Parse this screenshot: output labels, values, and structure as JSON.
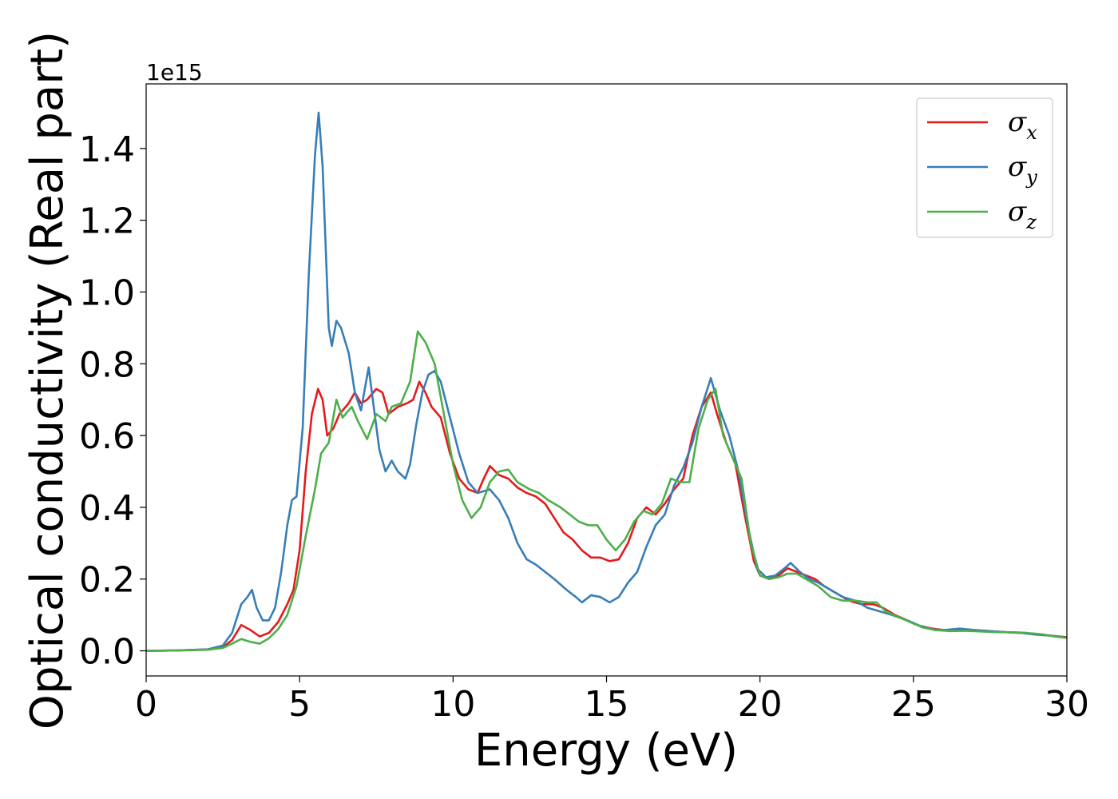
{
  "chart_data": {
    "type": "line",
    "title": "",
    "xlabel": "Energy (eV)",
    "ylabel": "Optical conductivity (Real part)",
    "y_offset_text": "1e15",
    "xlim": [
      0,
      30
    ],
    "ylim": [
      -0.07,
      1.58
    ],
    "x_ticks": [
      0,
      5,
      10,
      15,
      20,
      25,
      30
    ],
    "y_ticks": [
      0.0,
      0.2,
      0.4,
      0.6,
      0.8,
      1.0,
      1.2,
      1.4
    ],
    "y_tick_labels": [
      "0.0",
      "0.2",
      "0.4",
      "0.6",
      "0.8",
      "1.0",
      "1.2",
      "1.4"
    ],
    "grid": false,
    "legend_position": "top-right",
    "series": [
      {
        "name": "σx",
        "legend_base": "σ",
        "legend_sub": "x",
        "color": "#e41a1c",
        "points": [
          [
            0,
            0
          ],
          [
            1,
            0.001
          ],
          [
            2,
            0.004
          ],
          [
            2.5,
            0.01
          ],
          [
            2.8,
            0.03
          ],
          [
            3.1,
            0.072
          ],
          [
            3.4,
            0.058
          ],
          [
            3.7,
            0.04
          ],
          [
            4.0,
            0.05
          ],
          [
            4.3,
            0.08
          ],
          [
            4.6,
            0.13
          ],
          [
            4.8,
            0.17
          ],
          [
            5.0,
            0.28
          ],
          [
            5.2,
            0.5
          ],
          [
            5.4,
            0.66
          ],
          [
            5.6,
            0.73
          ],
          [
            5.75,
            0.7
          ],
          [
            5.9,
            0.6
          ],
          [
            6.1,
            0.62
          ],
          [
            6.3,
            0.66
          ],
          [
            6.6,
            0.69
          ],
          [
            6.8,
            0.72
          ],
          [
            7.0,
            0.69
          ],
          [
            7.2,
            0.7
          ],
          [
            7.5,
            0.73
          ],
          [
            7.7,
            0.72
          ],
          [
            7.9,
            0.66
          ],
          [
            8.2,
            0.68
          ],
          [
            8.5,
            0.69
          ],
          [
            8.7,
            0.7
          ],
          [
            8.9,
            0.75
          ],
          [
            9.1,
            0.72
          ],
          [
            9.3,
            0.68
          ],
          [
            9.6,
            0.65
          ],
          [
            9.9,
            0.55
          ],
          [
            10.2,
            0.48
          ],
          [
            10.5,
            0.45
          ],
          [
            10.8,
            0.44
          ],
          [
            11.0,
            0.48
          ],
          [
            11.2,
            0.515
          ],
          [
            11.5,
            0.49
          ],
          [
            11.8,
            0.48
          ],
          [
            12.1,
            0.455
          ],
          [
            12.4,
            0.44
          ],
          [
            12.7,
            0.43
          ],
          [
            13.0,
            0.41
          ],
          [
            13.3,
            0.37
          ],
          [
            13.6,
            0.33
          ],
          [
            13.9,
            0.31
          ],
          [
            14.2,
            0.28
          ],
          [
            14.5,
            0.26
          ],
          [
            14.8,
            0.26
          ],
          [
            15.1,
            0.25
          ],
          [
            15.4,
            0.255
          ],
          [
            15.7,
            0.3
          ],
          [
            16.0,
            0.37
          ],
          [
            16.3,
            0.4
          ],
          [
            16.6,
            0.38
          ],
          [
            16.9,
            0.41
          ],
          [
            17.2,
            0.45
          ],
          [
            17.5,
            0.48
          ],
          [
            17.8,
            0.6
          ],
          [
            18.1,
            0.68
          ],
          [
            18.4,
            0.72
          ],
          [
            18.6,
            0.66
          ],
          [
            18.9,
            0.58
          ],
          [
            19.2,
            0.52
          ],
          [
            19.5,
            0.38
          ],
          [
            19.8,
            0.25
          ],
          [
            20.0,
            0.21
          ],
          [
            20.3,
            0.2
          ],
          [
            20.6,
            0.21
          ],
          [
            20.9,
            0.23
          ],
          [
            21.2,
            0.22
          ],
          [
            21.5,
            0.21
          ],
          [
            21.8,
            0.2
          ],
          [
            22.1,
            0.18
          ],
          [
            22.5,
            0.16
          ],
          [
            22.9,
            0.14
          ],
          [
            23.3,
            0.13
          ],
          [
            23.7,
            0.13
          ],
          [
            24.0,
            0.12
          ],
          [
            24.4,
            0.1
          ],
          [
            24.8,
            0.085
          ],
          [
            25.2,
            0.07
          ],
          [
            25.6,
            0.062
          ],
          [
            26.0,
            0.058
          ],
          [
            26.5,
            0.06
          ],
          [
            27.0,
            0.058
          ],
          [
            27.5,
            0.055
          ],
          [
            28.0,
            0.052
          ],
          [
            28.5,
            0.05
          ],
          [
            29.0,
            0.047
          ],
          [
            29.5,
            0.042
          ],
          [
            30.0,
            0.038
          ]
        ]
      },
      {
        "name": "σy",
        "legend_base": "σ",
        "legend_sub": "y",
        "color": "#377eb8",
        "points": [
          [
            0,
            0
          ],
          [
            1,
            0.001
          ],
          [
            2,
            0.004
          ],
          [
            2.5,
            0.015
          ],
          [
            2.8,
            0.05
          ],
          [
            3.1,
            0.13
          ],
          [
            3.3,
            0.15
          ],
          [
            3.45,
            0.17
          ],
          [
            3.6,
            0.12
          ],
          [
            3.8,
            0.085
          ],
          [
            4.0,
            0.085
          ],
          [
            4.2,
            0.12
          ],
          [
            4.4,
            0.22
          ],
          [
            4.6,
            0.35
          ],
          [
            4.75,
            0.42
          ],
          [
            4.9,
            0.43
          ],
          [
            5.1,
            0.62
          ],
          [
            5.3,
            1.05
          ],
          [
            5.5,
            1.38
          ],
          [
            5.62,
            1.5
          ],
          [
            5.75,
            1.35
          ],
          [
            5.95,
            0.9
          ],
          [
            6.05,
            0.85
          ],
          [
            6.2,
            0.92
          ],
          [
            6.35,
            0.9
          ],
          [
            6.6,
            0.83
          ],
          [
            6.8,
            0.72
          ],
          [
            7.0,
            0.67
          ],
          [
            7.25,
            0.79
          ],
          [
            7.4,
            0.69
          ],
          [
            7.6,
            0.56
          ],
          [
            7.8,
            0.5
          ],
          [
            8.0,
            0.53
          ],
          [
            8.2,
            0.5
          ],
          [
            8.45,
            0.48
          ],
          [
            8.6,
            0.52
          ],
          [
            8.8,
            0.63
          ],
          [
            9.0,
            0.72
          ],
          [
            9.2,
            0.77
          ],
          [
            9.4,
            0.78
          ],
          [
            9.6,
            0.75
          ],
          [
            9.9,
            0.65
          ],
          [
            10.2,
            0.55
          ],
          [
            10.5,
            0.47
          ],
          [
            10.8,
            0.44
          ],
          [
            11.2,
            0.45
          ],
          [
            11.5,
            0.42
          ],
          [
            11.8,
            0.37
          ],
          [
            12.1,
            0.3
          ],
          [
            12.4,
            0.255
          ],
          [
            12.7,
            0.24
          ],
          [
            13.0,
            0.22
          ],
          [
            13.3,
            0.2
          ],
          [
            13.7,
            0.17
          ],
          [
            14.0,
            0.15
          ],
          [
            14.2,
            0.135
          ],
          [
            14.5,
            0.155
          ],
          [
            14.8,
            0.15
          ],
          [
            15.1,
            0.135
          ],
          [
            15.4,
            0.15
          ],
          [
            15.7,
            0.19
          ],
          [
            16.0,
            0.22
          ],
          [
            16.3,
            0.29
          ],
          [
            16.6,
            0.35
          ],
          [
            16.9,
            0.38
          ],
          [
            17.2,
            0.46
          ],
          [
            17.5,
            0.51
          ],
          [
            17.8,
            0.58
          ],
          [
            18.1,
            0.68
          ],
          [
            18.4,
            0.76
          ],
          [
            18.7,
            0.67
          ],
          [
            19.0,
            0.6
          ],
          [
            19.3,
            0.5
          ],
          [
            19.6,
            0.35
          ],
          [
            19.9,
            0.23
          ],
          [
            20.2,
            0.205
          ],
          [
            20.5,
            0.21
          ],
          [
            20.8,
            0.23
          ],
          [
            21.0,
            0.245
          ],
          [
            21.3,
            0.22
          ],
          [
            21.6,
            0.2
          ],
          [
            21.9,
            0.19
          ],
          [
            22.3,
            0.17
          ],
          [
            22.7,
            0.15
          ],
          [
            23.1,
            0.14
          ],
          [
            23.5,
            0.12
          ],
          [
            23.9,
            0.11
          ],
          [
            24.3,
            0.1
          ],
          [
            24.8,
            0.085
          ],
          [
            25.2,
            0.07
          ],
          [
            25.6,
            0.06
          ],
          [
            26.0,
            0.058
          ],
          [
            26.5,
            0.062
          ],
          [
            27.0,
            0.058
          ],
          [
            27.5,
            0.055
          ],
          [
            28.0,
            0.052
          ],
          [
            28.5,
            0.05
          ],
          [
            29.0,
            0.045
          ],
          [
            29.5,
            0.042
          ],
          [
            30.0,
            0.036
          ]
        ]
      },
      {
        "name": "σz",
        "legend_base": "σ",
        "legend_sub": "z",
        "color": "#4daf4a",
        "points": [
          [
            0,
            0
          ],
          [
            1,
            0.001
          ],
          [
            2,
            0.003
          ],
          [
            2.5,
            0.008
          ],
          [
            2.8,
            0.02
          ],
          [
            3.1,
            0.033
          ],
          [
            3.4,
            0.025
          ],
          [
            3.7,
            0.02
          ],
          [
            4.0,
            0.035
          ],
          [
            4.3,
            0.06
          ],
          [
            4.6,
            0.1
          ],
          [
            4.9,
            0.18
          ],
          [
            5.2,
            0.32
          ],
          [
            5.5,
            0.45
          ],
          [
            5.7,
            0.55
          ],
          [
            5.95,
            0.58
          ],
          [
            6.2,
            0.7
          ],
          [
            6.4,
            0.65
          ],
          [
            6.7,
            0.68
          ],
          [
            6.9,
            0.64
          ],
          [
            7.2,
            0.59
          ],
          [
            7.5,
            0.66
          ],
          [
            7.8,
            0.64
          ],
          [
            8.0,
            0.68
          ],
          [
            8.3,
            0.69
          ],
          [
            8.6,
            0.75
          ],
          [
            8.85,
            0.89
          ],
          [
            9.1,
            0.86
          ],
          [
            9.4,
            0.8
          ],
          [
            9.7,
            0.66
          ],
          [
            10.0,
            0.52
          ],
          [
            10.3,
            0.42
          ],
          [
            10.6,
            0.37
          ],
          [
            10.9,
            0.4
          ],
          [
            11.2,
            0.47
          ],
          [
            11.5,
            0.5
          ],
          [
            11.8,
            0.505
          ],
          [
            12.1,
            0.47
          ],
          [
            12.5,
            0.45
          ],
          [
            12.8,
            0.44
          ],
          [
            13.1,
            0.42
          ],
          [
            13.5,
            0.4
          ],
          [
            13.8,
            0.38
          ],
          [
            14.1,
            0.36
          ],
          [
            14.4,
            0.35
          ],
          [
            14.7,
            0.35
          ],
          [
            15.0,
            0.31
          ],
          [
            15.3,
            0.28
          ],
          [
            15.6,
            0.31
          ],
          [
            15.9,
            0.36
          ],
          [
            16.2,
            0.39
          ],
          [
            16.5,
            0.38
          ],
          [
            16.8,
            0.41
          ],
          [
            17.1,
            0.48
          ],
          [
            17.4,
            0.47
          ],
          [
            17.7,
            0.47
          ],
          [
            18.0,
            0.62
          ],
          [
            18.3,
            0.7
          ],
          [
            18.55,
            0.73
          ],
          [
            18.8,
            0.6
          ],
          [
            19.1,
            0.54
          ],
          [
            19.4,
            0.48
          ],
          [
            19.7,
            0.3
          ],
          [
            20.0,
            0.21
          ],
          [
            20.3,
            0.2
          ],
          [
            20.6,
            0.205
          ],
          [
            20.9,
            0.215
          ],
          [
            21.2,
            0.215
          ],
          [
            21.5,
            0.2
          ],
          [
            21.9,
            0.18
          ],
          [
            22.3,
            0.15
          ],
          [
            22.7,
            0.14
          ],
          [
            23.1,
            0.14
          ],
          [
            23.5,
            0.135
          ],
          [
            23.8,
            0.135
          ],
          [
            24.1,
            0.11
          ],
          [
            24.5,
            0.095
          ],
          [
            24.9,
            0.08
          ],
          [
            25.3,
            0.065
          ],
          [
            25.7,
            0.058
          ],
          [
            26.2,
            0.055
          ],
          [
            26.7,
            0.056
          ],
          [
            27.2,
            0.054
          ],
          [
            27.7,
            0.052
          ],
          [
            28.2,
            0.052
          ],
          [
            28.7,
            0.05
          ],
          [
            29.2,
            0.046
          ],
          [
            29.6,
            0.04
          ],
          [
            30.0,
            0.036
          ]
        ]
      }
    ]
  }
}
